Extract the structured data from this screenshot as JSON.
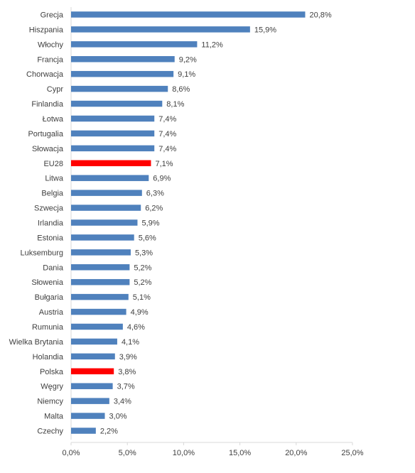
{
  "chart_data": {
    "type": "bar",
    "orientation": "horizontal",
    "categories": [
      "Grecja",
      "Hiszpania",
      "Włochy",
      "Francja",
      "Chorwacja",
      "Cypr",
      "Finlandia",
      "Łotwa",
      "Portugalia",
      "Słowacja",
      "EU28",
      "Litwa",
      "Belgia",
      "Szwecja",
      "Irlandia",
      "Estonia",
      "Luksemburg",
      "Dania",
      "Słowenia",
      "Bułgaria",
      "Austria",
      "Rumunia",
      "Wielka Brytania",
      "Holandia",
      "Polska",
      "Węgry",
      "Niemcy",
      "Malta",
      "Czechy"
    ],
    "values": [
      20.8,
      15.9,
      11.2,
      9.2,
      9.1,
      8.6,
      8.1,
      7.4,
      7.4,
      7.4,
      7.1,
      6.9,
      6.3,
      6.2,
      5.9,
      5.6,
      5.3,
      5.2,
      5.2,
      5.1,
      4.9,
      4.6,
      4.1,
      3.9,
      3.8,
      3.7,
      3.4,
      3.0,
      2.2
    ],
    "value_labels": [
      "20,8%",
      "15,9%",
      "11,2%",
      "9,2%",
      "9,1%",
      "8,6%",
      "8,1%",
      "7,4%",
      "7,4%",
      "7,4%",
      "7,1%",
      "6,9%",
      "6,3%",
      "6,2%",
      "5,9%",
      "5,6%",
      "5,3%",
      "5,2%",
      "5,2%",
      "5,1%",
      "4,9%",
      "4,6%",
      "4,1%",
      "3,9%",
      "3,8%",
      "3,7%",
      "3,4%",
      "3,0%",
      "2,2%"
    ],
    "highlighted": [
      "EU28",
      "Polska"
    ],
    "xlim": [
      0,
      25
    ],
    "x_ticks": [
      0,
      5,
      10,
      15,
      20,
      25
    ],
    "x_tick_labels": [
      "0,0%",
      "5,0%",
      "10,0%",
      "15,0%",
      "20,0%",
      "25,0%"
    ],
    "title": "",
    "xlabel": "",
    "ylabel": "",
    "grid": false,
    "legend": "none",
    "colors": {
      "bar": "#4f81bd",
      "highlight": "#ff0000",
      "axis": "#d9d9d9",
      "text": "#404040"
    }
  }
}
